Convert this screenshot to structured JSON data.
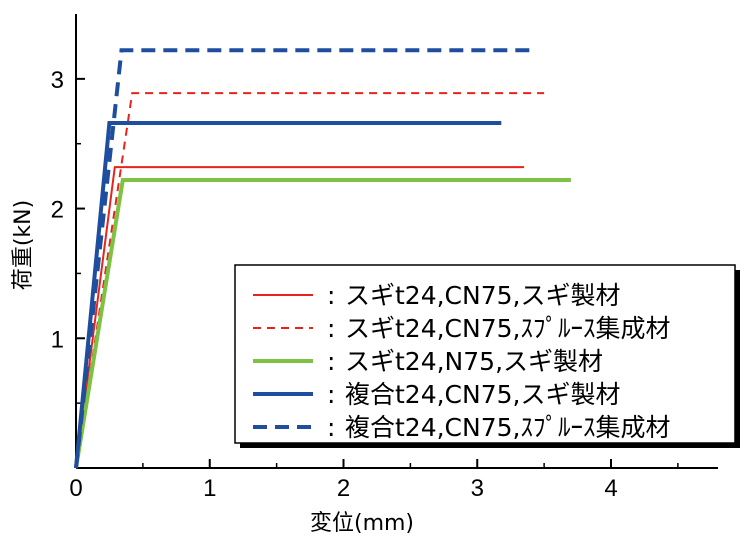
{
  "chart_data": {
    "type": "line",
    "title": "",
    "xlabel": "変位(mm)",
    "ylabel": "荷重(kN)",
    "xlim": [
      0,
      4.8
    ],
    "ylim": [
      0,
      3.5
    ],
    "xticks": [
      0,
      1,
      2,
      3,
      4
    ],
    "xtick_labels": [
      "0",
      "1",
      "2",
      "3",
      "4"
    ],
    "yticks": [
      1,
      2,
      3
    ],
    "ytick_labels": [
      "1",
      "2",
      "3"
    ],
    "grid": false,
    "legend_position": "lower-right",
    "series": [
      {
        "name": "スギt24,CN75,スギ製材",
        "color": "#e8231c",
        "dash": "solid",
        "weight": "thin",
        "x": [
          0,
          0.29,
          3.35
        ],
        "y": [
          0,
          2.32,
          2.32
        ]
      },
      {
        "name": "スギt24,CN75,ｽﾌﾟﾙｰｽ集成材",
        "color": "#e8231c",
        "dash": "dashed",
        "weight": "thin",
        "x": [
          0,
          0.42,
          3.5
        ],
        "y": [
          0,
          2.89,
          2.89
        ]
      },
      {
        "name": "スギt24,N75,スギ製材",
        "color": "#7dc242",
        "dash": "solid",
        "weight": "thick",
        "x": [
          0,
          0.35,
          3.7
        ],
        "y": [
          0,
          2.22,
          2.22
        ]
      },
      {
        "name": "複合t24,CN75,スギ製材",
        "color": "#1f4e9f",
        "dash": "solid",
        "weight": "thick",
        "x": [
          0,
          0.25,
          3.18
        ],
        "y": [
          0,
          2.66,
          2.66
        ]
      },
      {
        "name": "複合t24,CN75,ｽﾌﾟﾙｰｽ集成材",
        "color": "#1f4e9f",
        "dash": "dashed",
        "weight": "thick",
        "x": [
          0,
          0.34,
          3.4
        ],
        "y": [
          0,
          3.22,
          3.22
        ]
      }
    ],
    "legend_separator": ":"
  }
}
